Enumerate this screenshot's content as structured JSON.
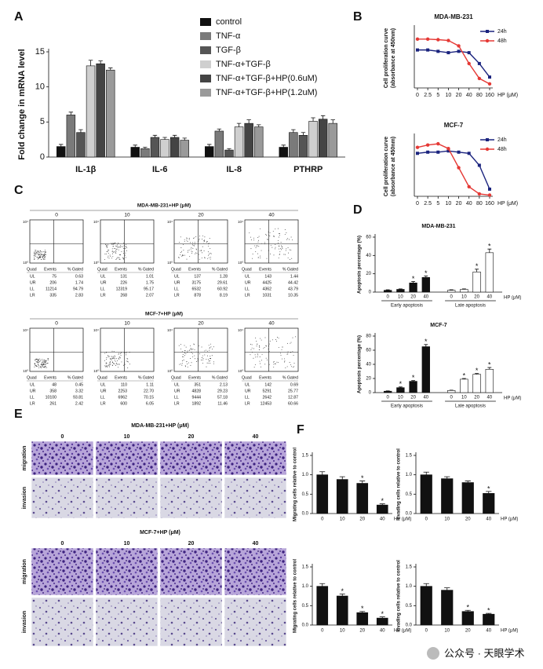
{
  "panels": [
    "A",
    "B",
    "C",
    "D",
    "E",
    "F"
  ],
  "chart_data": [
    {
      "type": "bar",
      "ylabel": "Fold change in mRNA level",
      "categories": [
        "IL-1β",
        "IL-6",
        "IL-8",
        "PTHRP"
      ],
      "ylim": [
        0,
        15
      ],
      "yticks": [
        0,
        5,
        10,
        15
      ],
      "legend": "top-right",
      "series": [
        {
          "name": "control",
          "color": "#111111",
          "values": [
            1.5,
            1.4,
            1.5,
            1.4
          ],
          "errors": [
            0.3,
            0.3,
            0.3,
            0.3
          ]
        },
        {
          "name": "TNF-α",
          "color": "#7a7a7a",
          "values": [
            6.0,
            1.2,
            3.7,
            3.5
          ],
          "errors": [
            0.4,
            0.2,
            0.3,
            0.4
          ]
        },
        {
          "name": "TGF-β",
          "color": "#555555",
          "values": [
            3.5,
            2.8,
            1.0,
            3.1
          ],
          "errors": [
            0.4,
            0.3,
            0.2,
            0.4
          ]
        },
        {
          "name": "TNF-α+TGF-β",
          "color": "#cfcfcf",
          "values": [
            13.0,
            2.5,
            4.3,
            5.1
          ],
          "errors": [
            0.8,
            0.3,
            0.5,
            0.5
          ]
        },
        {
          "name": "TNF-α+TGF-β+HP(0.6uM)",
          "color": "#444444",
          "values": [
            13.3,
            2.8,
            4.8,
            5.4
          ],
          "errors": [
            0.4,
            0.3,
            0.5,
            0.5
          ]
        },
        {
          "name": "TNF-α+TGF-β+HP(1.2uM)",
          "color": "#9a9a9a",
          "values": [
            12.4,
            2.4,
            4.3,
            4.8
          ],
          "errors": [
            0.3,
            0.3,
            0.3,
            0.5
          ]
        }
      ]
    },
    {
      "type": "line",
      "title": "MDA-MB-231",
      "ylabel": [
        "Cell proliferation curve",
        "(absorbance at 450nm)"
      ],
      "xlabel": "HP (μM)",
      "x": [
        "0",
        "2.5",
        "5",
        "10",
        "20",
        "40",
        "80",
        "160"
      ],
      "ylim": [
        0,
        2.2
      ],
      "legend": "top-right",
      "series": [
        {
          "name": "24h",
          "color": "#1a237e",
          "marker": "square",
          "values": [
            1.4,
            1.4,
            1.35,
            1.3,
            1.35,
            1.3,
            0.9,
            0.4
          ]
        },
        {
          "name": "48h",
          "color": "#e53935",
          "marker": "circle",
          "values": [
            1.8,
            1.8,
            1.78,
            1.75,
            1.55,
            0.9,
            0.35,
            0.15
          ]
        }
      ]
    },
    {
      "type": "line",
      "title": "MCF-7",
      "ylabel": [
        "Cell proliferation curve",
        "(absorbance at 450nm)"
      ],
      "xlabel": "HP (μM)",
      "x": [
        "0",
        "2.5",
        "5",
        "10",
        "20",
        "40",
        "80",
        "160"
      ],
      "ylim": [
        0,
        2.5
      ],
      "legend": "top-right",
      "series": [
        {
          "name": "24h",
          "color": "#1a237e",
          "marker": "square",
          "values": [
            1.8,
            1.85,
            1.85,
            1.9,
            1.85,
            1.8,
            1.3,
            0.3
          ]
        },
        {
          "name": "48h",
          "color": "#e53935",
          "marker": "circle",
          "values": [
            2.05,
            2.15,
            2.2,
            2.0,
            1.2,
            0.4,
            0.1,
            0.05
          ]
        }
      ]
    },
    {
      "type": "bar",
      "grouping": "series",
      "title": "MDA-MB-231",
      "ylabel": "Apoptosis percentage (%)",
      "xlabel": "HP (μM)",
      "categories": [
        "0",
        "10",
        "20",
        "40"
      ],
      "ylim": [
        0,
        60
      ],
      "yticks": [
        0,
        20,
        40,
        60
      ],
      "series": [
        {
          "name": "Early apoptosis",
          "color": "#111111",
          "values": [
            2,
            3,
            10,
            16
          ],
          "errors": [
            0.5,
            0.5,
            1.5,
            1.5
          ],
          "markers": [
            null,
            null,
            "*",
            "*"
          ]
        },
        {
          "name": "Late apoptosis",
          "color": "#ffffff",
          "values": [
            2,
            3,
            22,
            43
          ],
          "errors": [
            0.5,
            0.5,
            3,
            4
          ],
          "markers": [
            null,
            null,
            "*",
            "*"
          ]
        }
      ]
    },
    {
      "type": "bar",
      "grouping": "series",
      "title": "MCF-7",
      "ylabel": "Apoptosis percentage (%)",
      "xlabel": "HP (μM)",
      "categories": [
        "0",
        "10",
        "20",
        "40"
      ],
      "ylim": [
        0,
        80
      ],
      "yticks": [
        0,
        20,
        40,
        60,
        80
      ],
      "series": [
        {
          "name": "Early apoptosis",
          "color": "#111111",
          "values": [
            2,
            7,
            16,
            65
          ],
          "errors": [
            0.5,
            1,
            1,
            3
          ],
          "markers": [
            null,
            "*",
            "*",
            "*"
          ]
        },
        {
          "name": "Late apoptosis",
          "color": "#ffffff",
          "values": [
            3,
            19,
            26,
            33
          ],
          "errors": [
            0.5,
            1,
            1,
            2.5
          ],
          "markers": [
            null,
            "*",
            "*",
            "*"
          ]
        }
      ]
    },
    {
      "type": "bar",
      "ylabel": "Migrating cells relative to control",
      "xlabel": "HP (μM)",
      "categories": [
        "0",
        "10",
        "20",
        "40"
      ],
      "values": [
        1.0,
        0.88,
        0.78,
        0.22
      ],
      "errors": [
        0.08,
        0.07,
        0.06,
        0.03
      ],
      "markers": [
        null,
        null,
        "*",
        "*"
      ],
      "color": "#111111",
      "ylim": [
        0,
        1.5
      ],
      "yticks": [
        {
          "value": 0,
          "label": "0.0"
        },
        0.5,
        {
          "value": 1,
          "label": "1.0"
        },
        1.5
      ]
    },
    {
      "type": "bar",
      "ylabel": "Invading cells relative to control",
      "xlabel": "HP (μM)",
      "categories": [
        "0",
        "10",
        "20",
        "40"
      ],
      "values": [
        1.0,
        0.9,
        0.8,
        0.52
      ],
      "errors": [
        0.07,
        0.05,
        0.04,
        0.05
      ],
      "markers": [
        null,
        null,
        null,
        "*"
      ],
      "color": "#111111",
      "ylim": [
        0,
        1.5
      ],
      "yticks": [
        {
          "value": 0,
          "label": "0.0"
        },
        0.5,
        {
          "value": 1,
          "label": "1.0"
        },
        1.5
      ]
    },
    {
      "type": "bar",
      "ylabel": "Migrating cells relative to control",
      "xlabel": "HP (μM)",
      "categories": [
        "0",
        "10",
        "20",
        "40"
      ],
      "values": [
        1.0,
        0.75,
        0.32,
        0.18
      ],
      "errors": [
        0.07,
        0.05,
        0.03,
        0.03
      ],
      "markers": [
        null,
        "*",
        "*",
        "*"
      ],
      "color": "#111111",
      "ylim": [
        0,
        1.5
      ],
      "yticks": [
        {
          "value": 0,
          "label": "0.0"
        },
        0.5,
        {
          "value": 1,
          "label": "1.0"
        },
        1.5
      ]
    },
    {
      "type": "bar",
      "ylabel": "Invading cells relative to control",
      "xlabel": "HP (μM)",
      "categories": [
        "0",
        "10",
        "20",
        "40"
      ],
      "values": [
        1.0,
        0.9,
        0.35,
        0.28
      ],
      "errors": [
        0.07,
        0.06,
        0.03,
        0.02
      ],
      "markers": [
        null,
        null,
        "*",
        "*"
      ],
      "color": "#111111",
      "ylim": [
        0,
        1.5
      ],
      "yticks": [
        {
          "value": 0,
          "label": "0.0"
        },
        0.5,
        {
          "value": 1,
          "label": "1.0"
        },
        1.5
      ]
    }
  ],
  "flow": {
    "header": [
      "Quad",
      "Events",
      "% Gated"
    ],
    "axis_labels": [
      "10⁰",
      "10⁴"
    ],
    "groups": [
      {
        "title": "MDA-MB-231+HP (μM)",
        "plots": [
          {
            "dose": "0",
            "rows": [
              [
                "UL",
                "75",
                "0.63"
              ],
              [
                "UR",
                "206",
                "1.74"
              ],
              [
                "LL",
                "11214",
                "94.79"
              ],
              [
                "LR",
                "335",
                "2.83"
              ]
            ]
          },
          {
            "dose": "10",
            "rows": [
              [
                "UL",
                "131",
                "1.01"
              ],
              [
                "UR",
                "226",
                "1.75"
              ],
              [
                "LL",
                "12319",
                "95.17"
              ],
              [
                "LR",
                "268",
                "2.07"
              ]
            ]
          },
          {
            "dose": "20",
            "rows": [
              [
                "UL",
                "137",
                "1.28"
              ],
              [
                "UR",
                "3175",
                "29.61"
              ],
              [
                "LL",
                "6532",
                "60.92"
              ],
              [
                "LR",
                "878",
                "8.19"
              ]
            ]
          },
          {
            "dose": "40",
            "rows": [
              [
                "UL",
                "143",
                "1.44"
              ],
              [
                "UR",
                "4425",
                "44.42"
              ],
              [
                "LL",
                "4362",
                "43.79"
              ],
              [
                "LR",
                "1031",
                "10.35"
              ]
            ]
          }
        ]
      },
      {
        "title": "MCF-7+HP (μM)",
        "plots": [
          {
            "dose": "0",
            "rows": [
              [
                "UL",
                "48",
                "0.45"
              ],
              [
                "UR",
                "358",
                "3.32"
              ],
              [
                "LL",
                "10100",
                "93.81"
              ],
              [
                "LR",
                "261",
                "2.42"
              ]
            ]
          },
          {
            "dose": "10",
            "rows": [
              [
                "UL",
                "110",
                "1.11"
              ],
              [
                "UR",
                "2253",
                "22.70"
              ],
              [
                "LL",
                "6962",
                "70.15"
              ],
              [
                "LR",
                "600",
                "6.05"
              ]
            ]
          },
          {
            "dose": "20",
            "rows": [
              [
                "UL",
                "351",
                "2.13"
              ],
              [
                "UR",
                "4828",
                "29.23"
              ],
              [
                "LL",
                "9444",
                "57.18"
              ],
              [
                "LR",
                "1892",
                "11.46"
              ]
            ]
          },
          {
            "dose": "40",
            "rows": [
              [
                "UL",
                "142",
                "0.69"
              ],
              [
                "UR",
                "5291",
                "25.77"
              ],
              [
                "LL",
                "2642",
                "12.87"
              ],
              [
                "LR",
                "12453",
                "60.66"
              ]
            ]
          }
        ]
      }
    ]
  },
  "images": {
    "columns": [
      "0",
      "10",
      "20",
      "40"
    ],
    "groups": [
      {
        "title": "MDA-MB-231+HP (μM)",
        "rows": [
          "migration",
          "invasion"
        ]
      },
      {
        "title": "MCF-7+HP (μM)",
        "rows": [
          "migration",
          "invasion"
        ]
      }
    ]
  },
  "watermark": "公众号 · 天眼学术"
}
